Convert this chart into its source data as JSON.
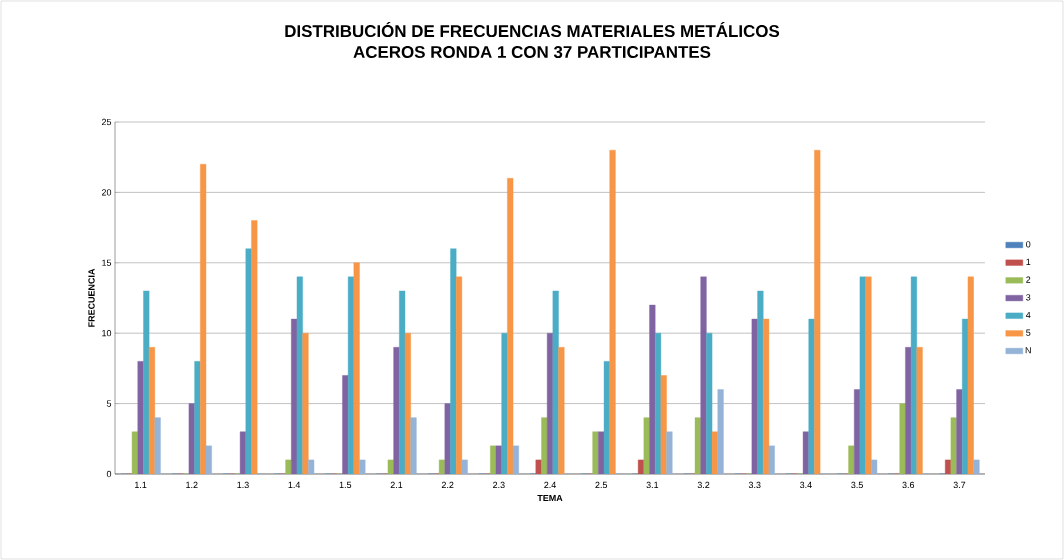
{
  "chart_data": {
    "type": "bar",
    "title": "DISTRIBUCIÓN DE FRECUENCIAS MATERIALES METÁLICOS\nACEROS RONDA 1 CON 37 PARTICIPANTES",
    "xlabel": "TEMA",
    "ylabel": "FRECUENCIA",
    "categories": [
      "1.1",
      "1.2",
      "1.3",
      "1.4",
      "1.5",
      "2.1",
      "2.2",
      "2.3",
      "2.4",
      "2.5",
      "3.1",
      "3.2",
      "3.3",
      "3.4",
      "3.5",
      "3.6",
      "3.7"
    ],
    "series": [
      {
        "name": "0",
        "color": "#4f81bd",
        "values": [
          0,
          0,
          0,
          0,
          0,
          0,
          0,
          0,
          0,
          0,
          0,
          0,
          0,
          0,
          0,
          0,
          0
        ]
      },
      {
        "name": "1",
        "color": "#c0504d",
        "values": [
          0,
          0,
          0,
          0,
          0,
          0,
          0,
          0,
          1,
          0,
          1,
          0,
          0,
          0,
          0,
          0,
          1
        ]
      },
      {
        "name": "2",
        "color": "#9bbb59",
        "values": [
          3,
          0,
          0,
          1,
          0,
          1,
          1,
          2,
          4,
          3,
          4,
          4,
          0,
          0,
          2,
          5,
          4
        ]
      },
      {
        "name": "3",
        "color": "#8064a2",
        "values": [
          8,
          5,
          3,
          11,
          7,
          9,
          5,
          2,
          10,
          3,
          12,
          14,
          11,
          3,
          6,
          9,
          6
        ]
      },
      {
        "name": "4",
        "color": "#4bacc6",
        "values": [
          13,
          8,
          16,
          14,
          14,
          13,
          16,
          10,
          13,
          8,
          10,
          10,
          13,
          11,
          14,
          14,
          11
        ]
      },
      {
        "name": "5",
        "color": "#f79646",
        "values": [
          9,
          22,
          18,
          10,
          15,
          10,
          14,
          21,
          9,
          23,
          7,
          3,
          11,
          23,
          14,
          9,
          14
        ]
      },
      {
        "name": "N",
        "color": "#95b3d7",
        "values": [
          4,
          2,
          0,
          1,
          1,
          4,
          1,
          2,
          0,
          0,
          3,
          6,
          2,
          0,
          1,
          0,
          1
        ]
      }
    ],
    "ylim": [
      0,
      25
    ],
    "yticks": [
      0,
      5,
      10,
      15,
      20,
      25
    ],
    "grid": "y",
    "legend": "right"
  }
}
